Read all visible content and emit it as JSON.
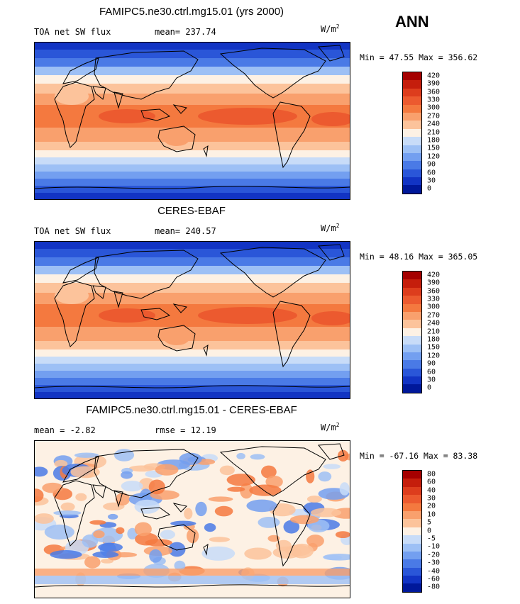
{
  "season_label": "ANN",
  "panels": [
    {
      "title": "FAMIPC5.ne30.ctrl.mg15.01 (yrs 2000)",
      "left_label": "TOA net SW flux",
      "stat_label": "mean= 237.74",
      "unit": "W/m",
      "unit_sup": "2",
      "minmax": "Min =  47.55 Max = 356.62",
      "colorbar_labels": [
        "420",
        "390",
        "360",
        "330",
        "300",
        "270",
        "240",
        "210",
        "180",
        "150",
        "120",
        "90",
        "60",
        "30",
        "0"
      ],
      "colorbar_colors": [
        "#a50000",
        "#c51e0c",
        "#dd3d1d",
        "#ec5a2f",
        "#f4793f",
        "#f9a06d",
        "#fcc39b",
        "#fdf1e4",
        "#c8dcf8",
        "#9dc0f5",
        "#739ff0",
        "#4a7ae6",
        "#2a56d8",
        "#1234c4",
        "#00189a"
      ]
    },
    {
      "title": "CERES-EBAF",
      "left_label": "TOA net SW flux",
      "stat_label": "mean= 240.57",
      "unit": "W/m",
      "unit_sup": "2",
      "minmax": "Min =  48.16 Max = 365.05",
      "colorbar_labels": [
        "420",
        "390",
        "360",
        "330",
        "300",
        "270",
        "240",
        "210",
        "180",
        "150",
        "120",
        "90",
        "60",
        "30",
        "0"
      ],
      "colorbar_colors": [
        "#a50000",
        "#c51e0c",
        "#dd3d1d",
        "#ec5a2f",
        "#f4793f",
        "#f9a06d",
        "#fcc39b",
        "#fdf1e4",
        "#c8dcf8",
        "#9dc0f5",
        "#739ff0",
        "#4a7ae6",
        "#2a56d8",
        "#1234c4",
        "#00189a"
      ]
    },
    {
      "title": "FAMIPC5.ne30.ctrl.mg15.01 - CERES-EBAF",
      "left_label": "mean =  -2.82",
      "stat_label": "rmse =  12.19",
      "unit": "W/m",
      "unit_sup": "2",
      "minmax": "Min = -67.16 Max =  83.38",
      "colorbar_labels": [
        "80",
        "60",
        "40",
        "30",
        "20",
        "10",
        "5",
        "0",
        "-5",
        "-10",
        "-20",
        "-30",
        "-40",
        "-60",
        "-80"
      ],
      "colorbar_colors": [
        "#a50000",
        "#c51e0c",
        "#dd3d1d",
        "#ec5a2f",
        "#f4793f",
        "#f9a06d",
        "#fcc39b",
        "#fdf1e4",
        "#c8dcf8",
        "#9dc0f5",
        "#739ff0",
        "#4a7ae6",
        "#2a56d8",
        "#1234c4",
        "#00189a"
      ]
    }
  ]
}
